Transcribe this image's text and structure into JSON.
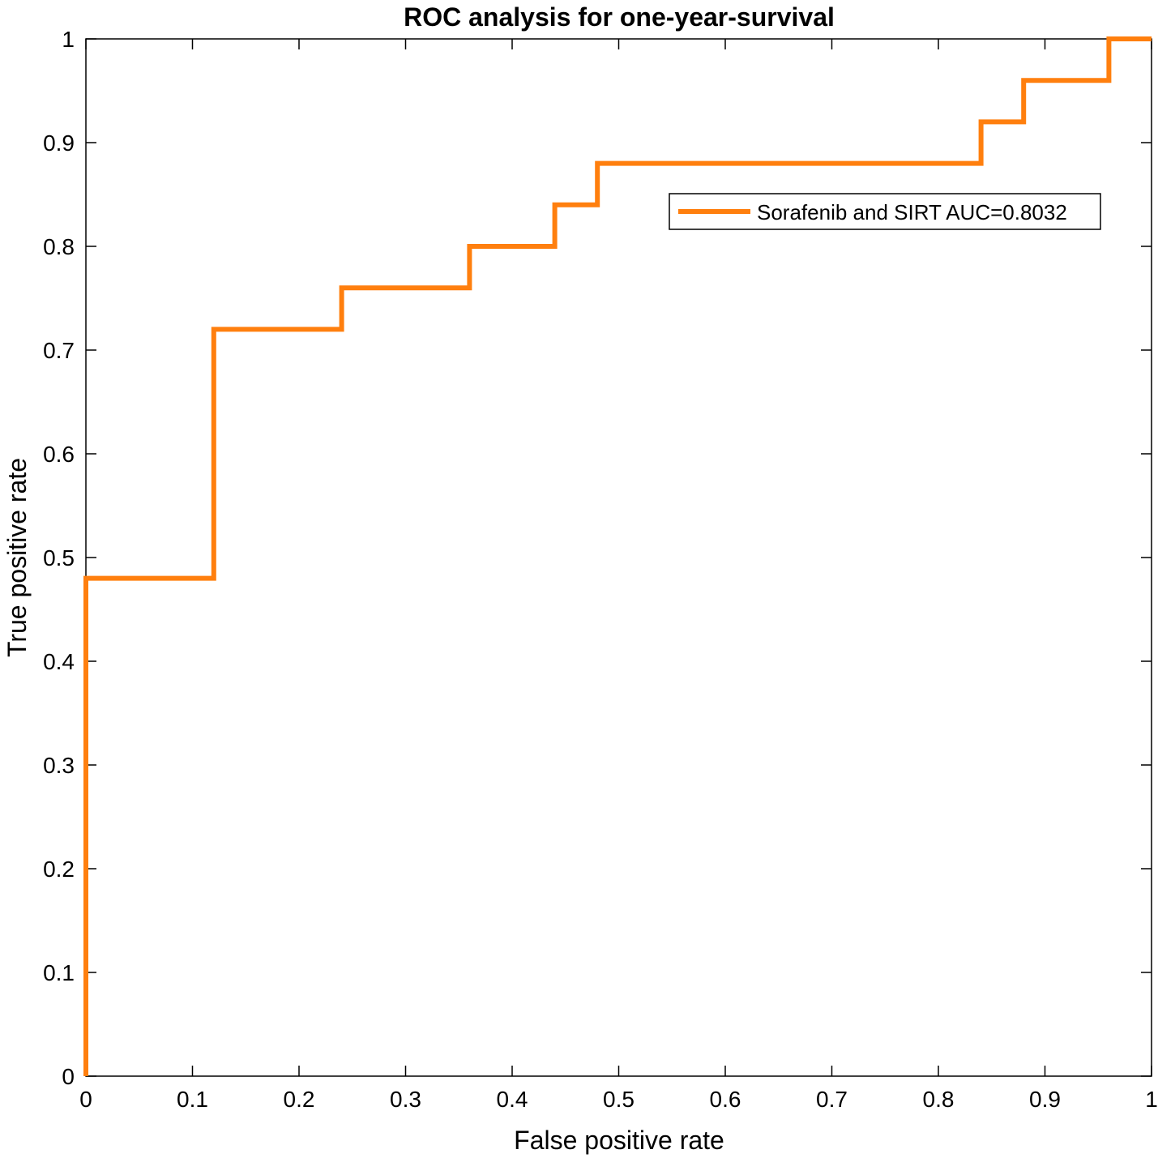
{
  "chart_data": {
    "type": "line",
    "title": "ROC analysis for one-year-survival",
    "xlabel": "False positive rate",
    "ylabel": "True positive rate",
    "xlim": [
      0,
      1
    ],
    "ylim": [
      0,
      1
    ],
    "xticks": [
      "0",
      "0.1",
      "0.2",
      "0.3",
      "0.4",
      "0.5",
      "0.6",
      "0.7",
      "0.8",
      "0.9",
      "1"
    ],
    "yticks": [
      "0",
      "0.1",
      "0.2",
      "0.3",
      "0.4",
      "0.5",
      "0.6",
      "0.7",
      "0.8",
      "0.9",
      "1"
    ],
    "grid": false,
    "legend_position": "top-right",
    "series": [
      {
        "name": "Sorafenib and SIRT AUC=0.8032",
        "color": "#ff7f0e",
        "x": [
          0,
          0,
          0.12,
          0.12,
          0.24,
          0.24,
          0.36,
          0.36,
          0.44,
          0.44,
          0.48,
          0.48,
          0.84,
          0.84,
          0.88,
          0.88,
          0.96,
          0.96,
          1
        ],
        "y": [
          0,
          0.48,
          0.48,
          0.72,
          0.72,
          0.76,
          0.76,
          0.8,
          0.8,
          0.84,
          0.84,
          0.88,
          0.88,
          0.92,
          0.92,
          0.96,
          0.96,
          1,
          1
        ]
      }
    ]
  }
}
